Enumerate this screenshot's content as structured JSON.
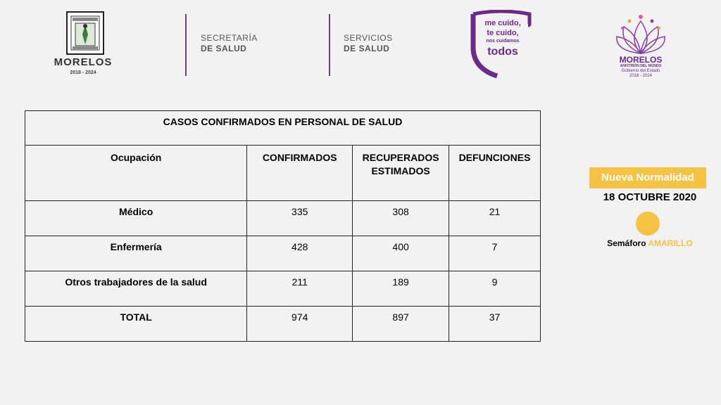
{
  "header": {
    "seal": {
      "name": "MORELOS",
      "years": "2018 - 2024"
    },
    "agency1": {
      "line1": "SECRETARÍA",
      "line2": "DE SALUD"
    },
    "agency2": {
      "line1": "SERVICIOS",
      "line2": "DE SALUD"
    },
    "campaign": {
      "line1": "me cuido,",
      "line2": "te cuido,",
      "line3": "nos cuidamos",
      "line4": "todos"
    },
    "morelos_logo": {
      "name": "MORELOS",
      "sub": "ANFITRIÓN DEL MUNDO",
      "gov1": "Gobierno del Estado",
      "gov2": "2018 - 2024"
    }
  },
  "table": {
    "title": "CASOS CONFIRMADOS EN PERSONAL DE SALUD",
    "headers": [
      "Ocupación",
      "CONFIRMADOS",
      "RECUPERADOS ESTIMADOS",
      "DEFUNCIONES"
    ],
    "rows": [
      {
        "label": "Médico",
        "confirmados": "335",
        "recuperados": "308",
        "defunciones": "21"
      },
      {
        "label": "Enfermería",
        "confirmados": "428",
        "recuperados": "400",
        "defunciones": "7"
      },
      {
        "label": "Otros trabajadores de la salud",
        "confirmados": "211",
        "recuperados": "189",
        "defunciones": "9"
      },
      {
        "label": "TOTAL",
        "confirmados": "974",
        "recuperados": "897",
        "defunciones": "37"
      }
    ]
  },
  "status": {
    "badge": "Nueva Normalidad",
    "date": "18 OCTUBRE 2020",
    "semaforo_label": "Semáforo",
    "semaforo_color": "AMARILLO",
    "accent_color": "#f6c244",
    "brand_color": "#6b2a8a"
  }
}
